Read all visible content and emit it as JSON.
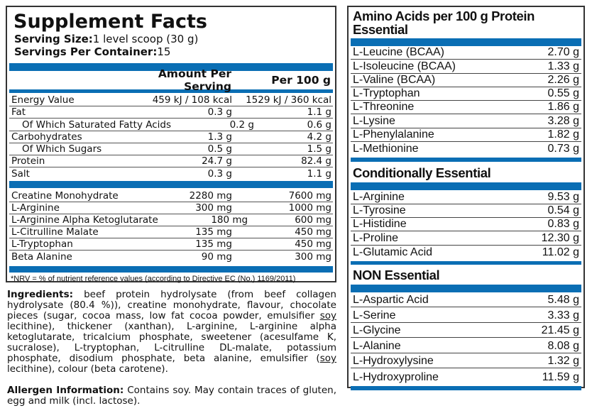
{
  "facts": {
    "title": "Supplement Facts",
    "serving_size_label": "Serving Size:",
    "serving_size": "1 level scoop (30 g)",
    "servings_label": "Servings Per Container:",
    "servings": "15",
    "col_serving": "Amount Per Serving",
    "col_100": "Per 100 g",
    "nutrients": [
      {
        "name": "Energy Value",
        "serving": "459 kJ / 108 kcal",
        "per100": "1529 kJ / 360 kcal"
      },
      {
        "name": "Fat",
        "serving": "0.3 g",
        "per100": "1.1 g"
      },
      {
        "name": "Of Which Saturated Fatty Acids",
        "serving": "0.2 g",
        "per100": "0.6 g"
      },
      {
        "name": "Carbohydrates",
        "serving": "1.3 g",
        "per100": "4.2 g"
      },
      {
        "name": "Of Which Sugars",
        "serving": "0.5 g",
        "per100": "1.5 g"
      },
      {
        "name": "Protein",
        "serving": "24.7 g",
        "per100": "82.4 g"
      },
      {
        "name": "Salt",
        "serving": "0.3 g",
        "per100": "1.1 g"
      }
    ],
    "actives": [
      {
        "name": "Creatine Monohydrate",
        "serving": "2280 mg",
        "per100": "7600 mg"
      },
      {
        "name": "L-Arginine",
        "serving": "300 mg",
        "per100": "1000 mg"
      },
      {
        "name": "L-Arginine Alpha Ketoglutarate",
        "serving": "180 mg",
        "per100": "600 mg"
      },
      {
        "name": "L-Citrulline Malate",
        "serving": "135 mg",
        "per100": "450 mg"
      },
      {
        "name": "L-Tryptophan",
        "serving": "135 mg",
        "per100": "450 mg"
      },
      {
        "name": "Beta Alanine",
        "serving": "90 mg",
        "per100": "300 mg"
      }
    ],
    "footnote": "*NRV = % of nutrient reference values (according to Directive EC (No.) 1169/2011)"
  },
  "amino": {
    "title": "Amino Acids per 100 g Protein",
    "essential_title": "Essential",
    "essential": [
      {
        "name": "L-Leucine (BCAA)",
        "value": "2.70 g"
      },
      {
        "name": "L-Isoleucine (BCAA)",
        "value": "1.33 g"
      },
      {
        "name": "L-Valine (BCAA)",
        "value": "2.26 g"
      },
      {
        "name": "L-Tryptophan",
        "value": "0.55 g"
      },
      {
        "name": "L-Threonine",
        "value": "1.86 g"
      },
      {
        "name": "L-Lysine",
        "value": "3.28 g"
      },
      {
        "name": "L-Phenylalanine",
        "value": "1.82 g"
      },
      {
        "name": "L-Methionine",
        "value": "0.73 g"
      }
    ],
    "conditional_title": "Conditionally Essential",
    "conditional": [
      {
        "name": "L-Arginine",
        "value": "9.53 g"
      },
      {
        "name": "L-Tyrosine",
        "value": "0.54 g"
      },
      {
        "name": "L-Histidine",
        "value": "0.83 g"
      },
      {
        "name": "L-Proline",
        "value": "12.30 g"
      },
      {
        "name": "L-Glutamic Acid",
        "value": "11.02 g"
      }
    ],
    "non_title": "NON Essential",
    "non": [
      {
        "name": "L-Aspartic Acid",
        "value": "5.48 g"
      },
      {
        "name": "L-Serine",
        "value": "3.33 g"
      },
      {
        "name": "L-Glycine",
        "value": "21.45 g"
      },
      {
        "name": "L-Alanine",
        "value": "8.08 g"
      },
      {
        "name": "L-Hydroxylysine",
        "value": "1.32 g"
      },
      {
        "name": "L-Hydroxyproline",
        "value": "11.59 g"
      }
    ]
  },
  "ingredients": {
    "label": "Ingredients:",
    "part1": " beef protein hydrolysate (from beef collagen hydrolysate (80.4 %)), creatine monohydrate, flavour, chocolate pieces (sugar, cocoa mass, low fat cocoa powder, emulsifier ",
    "soy1": "soy",
    "part2": " lecithine), thickener (xanthan), L-arginine, L-arginine alpha ketoglutarate, tricalcium phosphate, sweetener (acesulfame K, sucralose), L-tryptophan, L-citrulline DL-malate, potassium phosphate, disodium phosphate, beta alanine, emulsifier (",
    "soy2": "soy",
    "part3": " lecithine), colour (beta carotene)."
  },
  "allergen": {
    "label": "Allergen Information:",
    "text": " Contains soy. May contain traces of gluten, egg and milk (incl. lactose)."
  },
  "colors": {
    "accent": "#0a6eb4",
    "border": "#333333"
  }
}
